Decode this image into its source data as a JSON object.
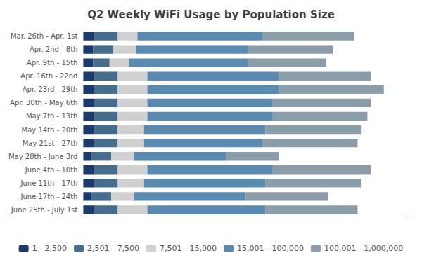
{
  "chart_data": {
    "type": "bar",
    "orientation": "horizontal",
    "stacked": true,
    "title": "Q2 Weekly WiFi Usage by Population Size",
    "categories": [
      "Mar. 26th - Apr. 1st",
      "Apr. 2nd - 8th",
      "Apr. 9th - 15th",
      "Apr. 16th - 22nd",
      "Apr. 23rd - 29th",
      "Apr. 30th - May 6th",
      "May 7th - 13th",
      "May 14th - 20th",
      "May 21st - 27th",
      "May 28th - June 3rd",
      "June 4th - 10th",
      "June 11th - 17th",
      "June 17th - 24th",
      "June 25th - July 1st"
    ],
    "series": [
      {
        "name": "1 - 2,500",
        "color": "#1b3a6b",
        "values": [
          3.5,
          3,
          3,
          3.5,
          3.5,
          3.5,
          3.5,
          3.5,
          3.5,
          2.5,
          3.5,
          3.5,
          2.5,
          3.5
        ]
      },
      {
        "name": "2,501 - 7,500",
        "color": "#466d8c",
        "values": [
          7,
          6,
          5,
          7,
          7,
          7,
          7,
          7,
          7,
          6,
          7,
          7,
          6,
          7
        ]
      },
      {
        "name": "7,501 - 15,000",
        "color": "#d0d0d0",
        "values": [
          6,
          7,
          6,
          9,
          9,
          9,
          9,
          8,
          8,
          7,
          9,
          8,
          7,
          9
        ]
      },
      {
        "name": "15,001 - 100,000",
        "color": "#5a8ab0",
        "values": [
          38,
          34,
          36,
          40,
          40,
          38,
          38,
          37,
          36,
          28,
          38,
          37,
          34,
          36
        ]
      },
      {
        "name": "100,001 - 1,000,000",
        "color": "#8c9daa",
        "values": [
          28,
          26,
          24,
          28,
          32,
          30,
          29,
          29,
          29,
          16,
          30,
          29,
          25,
          28
        ]
      }
    ],
    "xlim": [
      0,
      98.82
    ],
    "grid": false,
    "legend": "bottom",
    "tick_labels": "y"
  }
}
